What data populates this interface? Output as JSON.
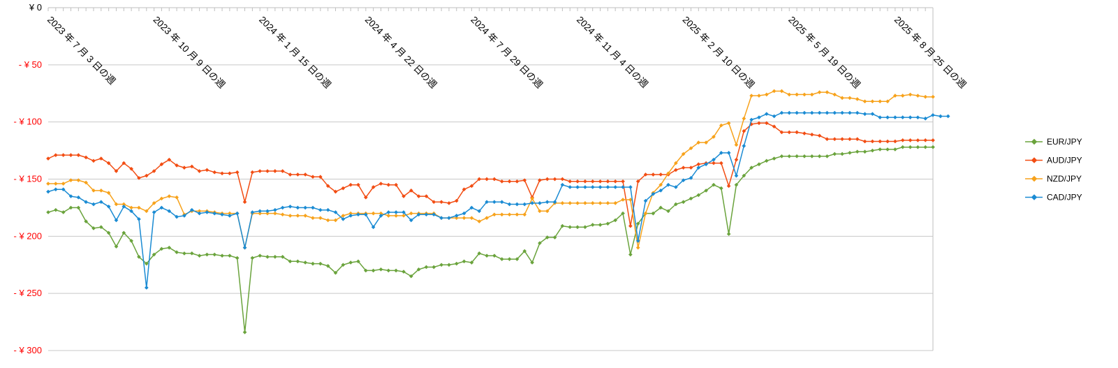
{
  "chart_data": {
    "type": "line",
    "title": "",
    "xlabel": "",
    "ylabel": "",
    "ylim": [
      0,
      -300
    ],
    "y_ticks": [
      {
        "value": 0,
        "label": "¥ 0",
        "color": "#000000"
      },
      {
        "value": -50,
        "label": "- ¥ 50",
        "color": "#ff0000"
      },
      {
        "value": -100,
        "label": "- ¥ 100",
        "color": "#ff0000"
      },
      {
        "value": -150,
        "label": "- ¥ 150",
        "color": "#ff0000"
      },
      {
        "value": -200,
        "label": "- ¥ 200",
        "color": "#ff0000"
      },
      {
        "value": -250,
        "label": "- ¥ 250",
        "color": "#ff0000"
      },
      {
        "value": -300,
        "label": "- ¥ 300",
        "color": "#ff0000"
      }
    ],
    "x_tick_labels": [
      {
        "index": 0,
        "label": "2023 年 7 月 3 日の週"
      },
      {
        "index": 14,
        "label": "2023 年 10 月 9 日の週"
      },
      {
        "index": 28,
        "label": "2024 年 1 月 15 日の週"
      },
      {
        "index": 42,
        "label": "2024 年 4 月 22 日の週"
      },
      {
        "index": 56,
        "label": "2024 年 7 月 29 日の週"
      },
      {
        "index": 70,
        "label": "2024 年 11 月 4 日の週"
      },
      {
        "index": 84,
        "label": "2025 年 2 月 10 日の週"
      },
      {
        "index": 98,
        "label": "2025 年 5 月 19 日の週"
      },
      {
        "index": 112,
        "label": "2025 年 8 月 25 日の週"
      }
    ],
    "grid": true,
    "legend_position": "right",
    "series": [
      {
        "name": "EUR/JPY",
        "color": "#6aa33c",
        "values": [
          -179,
          -177,
          -179,
          -175,
          -175,
          -187,
          -193,
          -192,
          -197,
          -209,
          -197,
          -204,
          -218,
          -224,
          -216,
          -211,
          -210,
          -214,
          -215,
          -215,
          -217,
          -216,
          -216,
          -217,
          -217,
          -219,
          -284,
          -219,
          -217,
          -218,
          -218,
          -218,
          -222,
          -222,
          -223,
          -224,
          -224,
          -226,
          -232,
          -225,
          -223,
          -222,
          -230,
          -230,
          -229,
          -230,
          -230,
          -231,
          -235,
          -229,
          -227,
          -227,
          -225,
          -225,
          -224,
          -222,
          -223,
          -215,
          -217,
          -217,
          -220,
          -220,
          -220,
          -213,
          -223,
          -206,
          -201,
          -201,
          -191,
          -192,
          -192,
          -192,
          -190,
          -190,
          -189,
          -186,
          -180,
          -216,
          -189,
          -180,
          -180,
          -175,
          -178,
          -172,
          -170,
          -167,
          -164,
          -160,
          -155,
          -158,
          -198,
          -155,
          -147,
          -140,
          -137,
          -134,
          -132,
          -130,
          -130,
          -130,
          -130,
          -130,
          -130,
          -130,
          -128,
          -128,
          -127,
          -126,
          -126,
          -125,
          -124,
          -124,
          -124,
          -122,
          -122,
          -122,
          -122,
          -122
        ]
      },
      {
        "name": "AUD/JPY",
        "color": "#f24d13",
        "values": [
          -132,
          -129,
          -129,
          -129,
          -129,
          -131,
          -134,
          -132,
          -136,
          -143,
          -136,
          -141,
          -149,
          -147,
          -143,
          -137,
          -133,
          -138,
          -140,
          -139,
          -143,
          -142,
          -144,
          -145,
          -145,
          -144,
          -170,
          -144,
          -143,
          -143,
          -143,
          -143,
          -146,
          -146,
          -146,
          -148,
          -148,
          -156,
          -161,
          -158,
          -155,
          -155,
          -166,
          -157,
          -154,
          -155,
          -155,
          -165,
          -160,
          -165,
          -165,
          -170,
          -170,
          -171,
          -169,
          -159,
          -156,
          -150,
          -150,
          -150,
          -152,
          -152,
          -152,
          -151,
          -166,
          -151,
          -150,
          -150,
          -150,
          -152,
          -152,
          -152,
          -152,
          -152,
          -152,
          -152,
          -152,
          -191,
          -152,
          -146,
          -146,
          -146,
          -146,
          -142,
          -140,
          -140,
          -137,
          -136,
          -136,
          -136,
          -156,
          -133,
          -108,
          -102,
          -101,
          -101,
          -104,
          -109,
          -109,
          -109,
          -110,
          -111,
          -112,
          -115,
          -115,
          -115,
          -115,
          -115,
          -117,
          -117,
          -117,
          -117,
          -117,
          -116,
          -116,
          -116,
          -116,
          -116
        ]
      },
      {
        "name": "NZD/JPY",
        "color": "#f7a21b",
        "values": [
          -154,
          -154,
          -154,
          -151,
          -151,
          -153,
          -160,
          -160,
          -162,
          -172,
          -172,
          -175,
          -175,
          -178,
          -171,
          -167,
          -165,
          -166,
          -181,
          -178,
          -178,
          -178,
          -179,
          -180,
          -180,
          -180,
          -210,
          -180,
          -180,
          -180,
          -180,
          -181,
          -182,
          -182,
          -182,
          -184,
          -184,
          -186,
          -186,
          -182,
          -180,
          -180,
          -180,
          -180,
          -180,
          -182,
          -182,
          -182,
          -180,
          -180,
          -180,
          -180,
          -184,
          -184,
          -184,
          -184,
          -184,
          -187,
          -184,
          -181,
          -181,
          -181,
          -181,
          -181,
          -167,
          -178,
          -178,
          -171,
          -171,
          -171,
          -171,
          -171,
          -171,
          -171,
          -171,
          -171,
          -168,
          -168,
          -210,
          -180,
          -162,
          -155,
          -145,
          -136,
          -128,
          -123,
          -118,
          -118,
          -113,
          -103,
          -101,
          -120,
          -97,
          -77,
          -77,
          -76,
          -73,
          -73,
          -76,
          -76,
          -76,
          -76,
          -74,
          -74,
          -76,
          -79,
          -79,
          -80,
          -82,
          -82,
          -82,
          -82,
          -77,
          -77,
          -76,
          -77,
          -78,
          -78
        ]
      },
      {
        "name": "CAD/JPY",
        "color": "#1a8bd3",
        "values": [
          -161,
          -159,
          -159,
          -165,
          -166,
          -170,
          -172,
          -170,
          -174,
          -186,
          -174,
          -178,
          -185,
          -245,
          -179,
          -175,
          -178,
          -183,
          -182,
          -177,
          -180,
          -179,
          -180,
          -181,
          -182,
          -180,
          -210,
          -179,
          -178,
          -178,
          -177,
          -175,
          -174,
          -175,
          -175,
          -175,
          -177,
          -177,
          -179,
          -185,
          -182,
          -181,
          -181,
          -192,
          -182,
          -179,
          -179,
          -179,
          -186,
          -181,
          -181,
          -181,
          -184,
          -184,
          -182,
          -180,
          -175,
          -178,
          -170,
          -170,
          -170,
          -172,
          -172,
          -172,
          -171,
          -171,
          -170,
          -170,
          -155,
          -157,
          -157,
          -157,
          -157,
          -157,
          -157,
          -157,
          -157,
          -157,
          -204,
          -169,
          -163,
          -160,
          -155,
          -157,
          -151,
          -149,
          -140,
          -137,
          -133,
          -127,
          -127,
          -147,
          -121,
          -98,
          -96,
          -93,
          -95,
          -92,
          -92,
          -92,
          -92,
          -92,
          -92,
          -92,
          -92,
          -92,
          -92,
          -92,
          -93,
          -93,
          -96,
          -96,
          -96,
          -96,
          -96,
          -96,
          -97,
          -94,
          -95,
          -95
        ]
      }
    ]
  }
}
